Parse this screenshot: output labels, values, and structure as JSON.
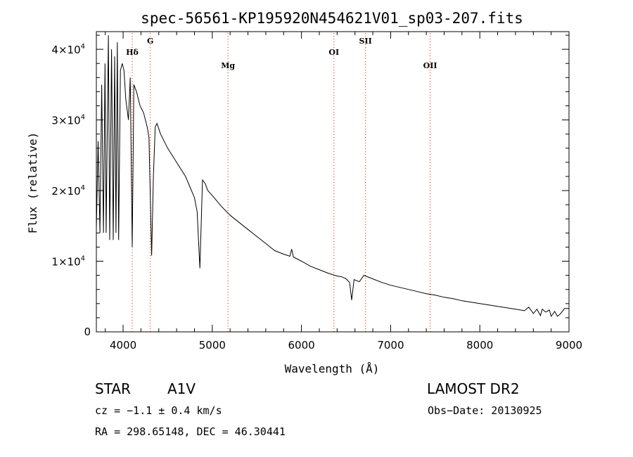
{
  "chart_data": {
    "type": "line",
    "title": "spec-56561-KP195920N454621V01_sp03-207.fits",
    "xlabel": "Wavelength (Å)",
    "ylabel": "Flux (relative)",
    "xlim": [
      3700,
      9000
    ],
    "ylim": [
      0,
      42500
    ],
    "xticks": [
      4000,
      5000,
      6000,
      7000,
      8000,
      9000
    ],
    "yticks": [
      {
        "value": 0,
        "mant": "0",
        "exp": ""
      },
      {
        "value": 10000,
        "mant": "1×10",
        "exp": "4"
      },
      {
        "value": 20000,
        "mant": "2×10",
        "exp": "4"
      },
      {
        "value": 30000,
        "mant": "3×10",
        "exp": "4"
      },
      {
        "value": 40000,
        "mant": "4×10",
        "exp": "4"
      }
    ],
    "line_color": "#000000",
    "marker_color": "#ff0000",
    "lines": [
      {
        "label": "Hδ",
        "x": 4102
      },
      {
        "label": "G",
        "x": 4305
      },
      {
        "label": "Mg",
        "x": 5176
      },
      {
        "label": "OI",
        "x": 6364
      },
      {
        "label": "SII",
        "x": 6718
      },
      {
        "label": "OII",
        "x": 7443
      }
    ],
    "series": [
      {
        "x": [
          3700,
          3720,
          3740,
          3760,
          3780,
          3797,
          3810,
          3835,
          3850,
          3870,
          3889,
          3905,
          3920,
          3935,
          3950,
          3970,
          3990,
          4010,
          4030,
          4060,
          4080,
          4102,
          4120,
          4150,
          4190,
          4230,
          4270,
          4290,
          4320,
          4340,
          4360,
          4380,
          4420,
          4500,
          4600,
          4700,
          4750,
          4800,
          4830,
          4861,
          4890,
          4920,
          4950,
          5000,
          5100,
          5200,
          5300,
          5400,
          5500,
          5600,
          5700,
          5800,
          5870,
          5890,
          5910,
          6000,
          6100,
          6200,
          6300,
          6400,
          6450,
          6500,
          6540,
          6563,
          6590,
          6650,
          6700,
          6800,
          6900,
          7000,
          7100,
          7200,
          7300,
          7400,
          7500,
          7600,
          7700,
          7800,
          7900,
          8000,
          8100,
          8200,
          8300,
          8400,
          8500,
          8550,
          8600,
          8640,
          8680,
          8700,
          8740,
          8780,
          8800,
          8840,
          8870,
          8900,
          8950,
          9000
        ],
        "y": [
          14500,
          27000,
          14000,
          35000,
          14000,
          38000,
          14000,
          42000,
          13000,
          40000,
          13000,
          39000,
          14000,
          41000,
          13000,
          37000,
          38000,
          37000,
          33000,
          30000,
          36000,
          12000,
          35000,
          34000,
          32000,
          31000,
          29000,
          27500,
          10800,
          22000,
          29000,
          29500,
          28000,
          26000,
          24000,
          22000,
          20500,
          19000,
          17000,
          9000,
          21500,
          21000,
          20000,
          19300,
          17800,
          16500,
          15500,
          14500,
          13500,
          12500,
          11500,
          11000,
          10700,
          11700,
          10600,
          10000,
          9300,
          8800,
          8300,
          7900,
          7800,
          7500,
          7000,
          4500,
          7400,
          7100,
          8000,
          7500,
          7000,
          6600,
          6300,
          6000,
          5700,
          5400,
          5200,
          4900,
          4700,
          4400,
          4200,
          4000,
          3800,
          3600,
          3400,
          3200,
          3000,
          3500,
          2600,
          3200,
          2300,
          3200,
          2800,
          3100,
          2200,
          2900,
          2200,
          2500,
          3300,
          3300
        ]
      }
    ]
  },
  "info": {
    "object_class": "STAR",
    "subclass": "A1V",
    "survey": "LAMOST DR2",
    "cz": "cz = −1.1 ± 0.4 km/s",
    "obs_date": "Obs−Date: 20130925",
    "coords": "RA = 298.65148, DEC =  46.30441"
  }
}
